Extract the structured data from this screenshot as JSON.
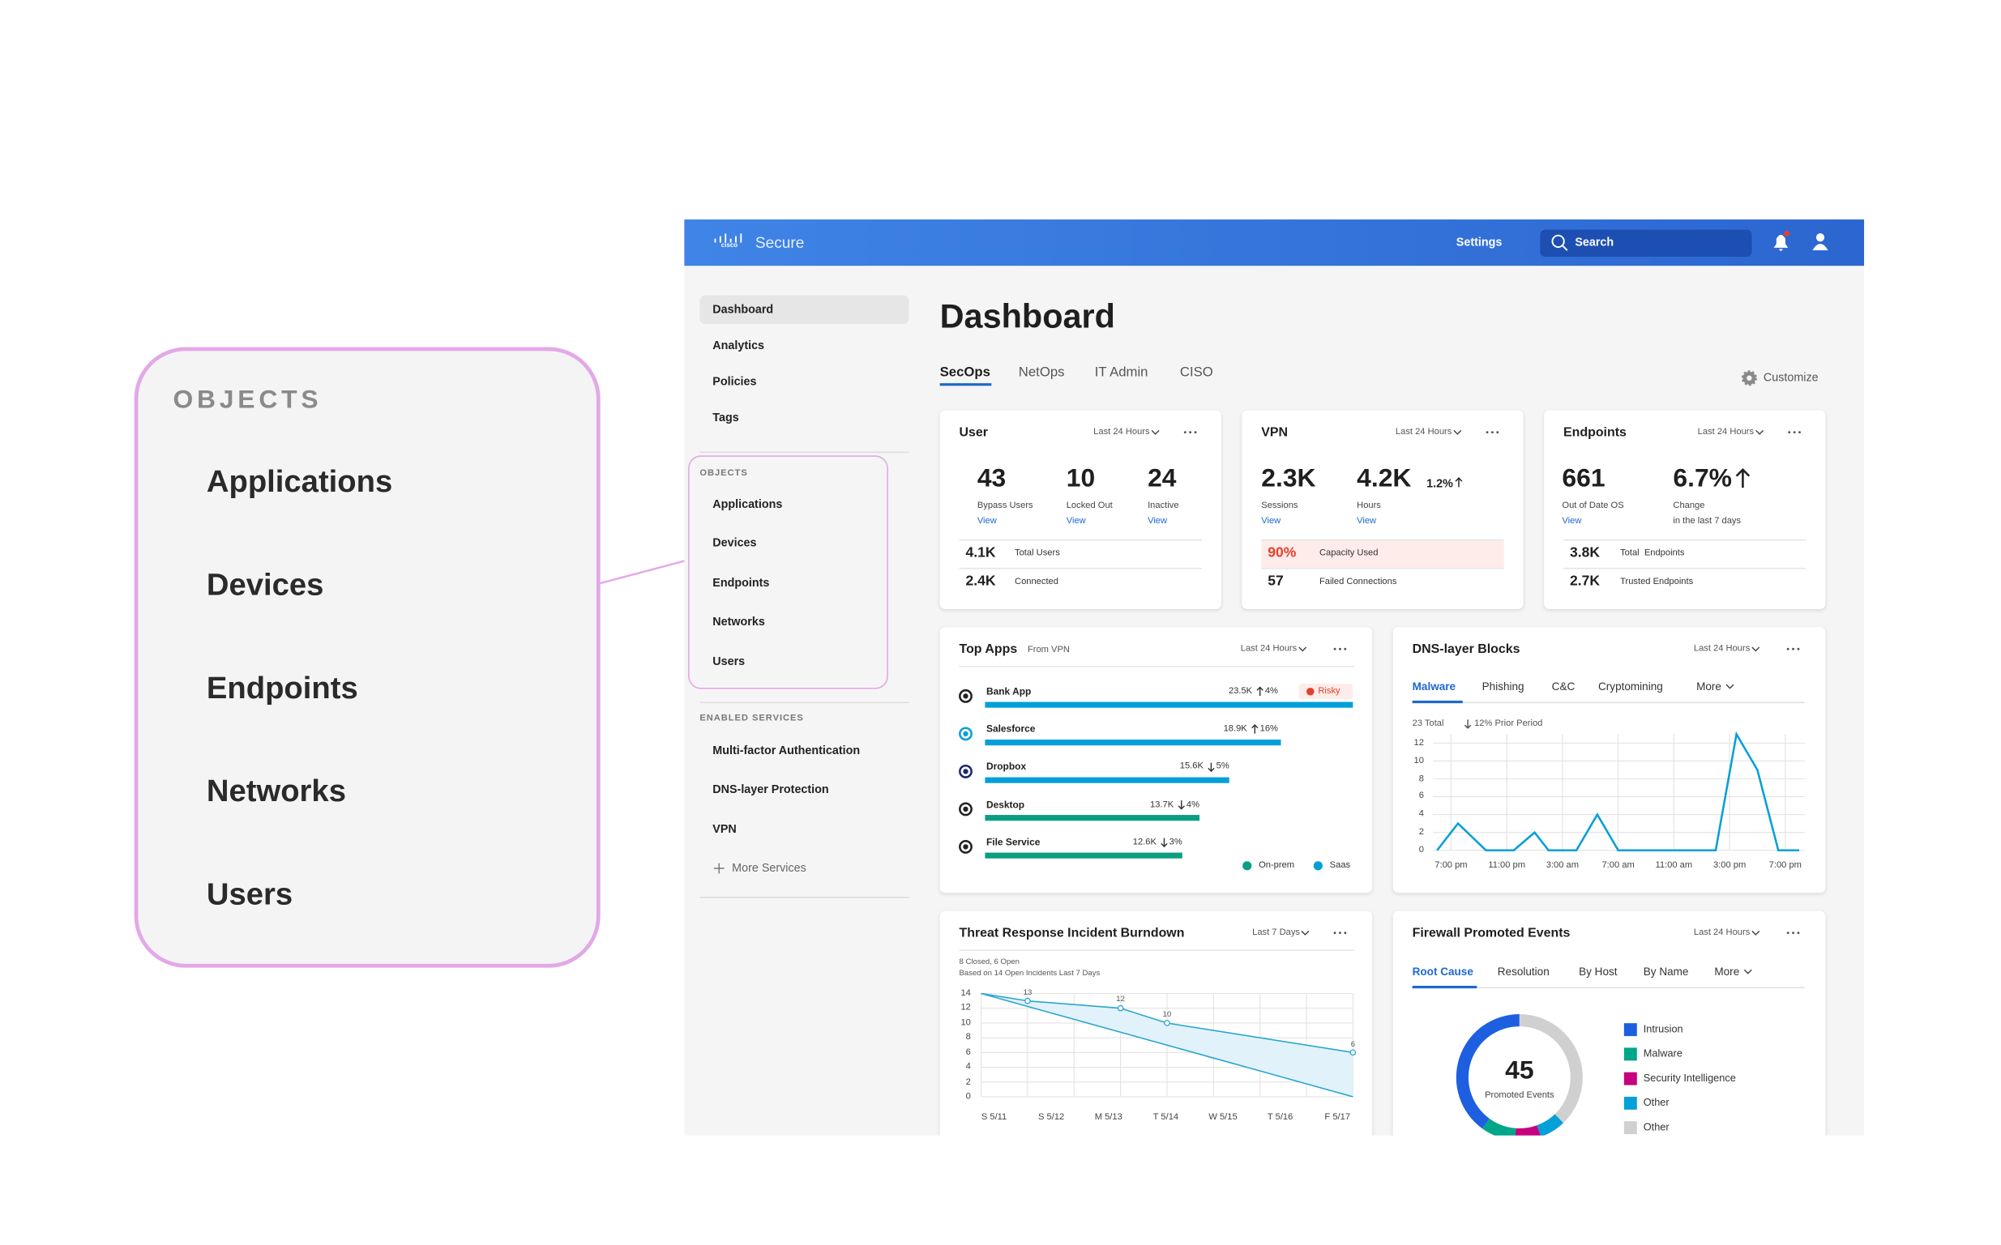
{
  "callout": {
    "title": "OBJECTS",
    "items": [
      "Applications",
      "Devices",
      "Endpoints",
      "Networks",
      "Users"
    ]
  },
  "header": {
    "logo": "cisco",
    "brand": "Secure",
    "settings": "Settings",
    "search": "Search"
  },
  "sidebar": {
    "nav": [
      "Dashboard",
      "Analytics",
      "Policies",
      "Tags"
    ],
    "objects_title": "OBJECTS",
    "objects": [
      "Applications",
      "Devices",
      "Endpoints",
      "Networks",
      "Users"
    ],
    "services_title": "ENABLED SERVICES",
    "services": [
      "Multi-factor Authentication",
      "DNS-layer Protection",
      "VPN"
    ],
    "more_services": "More Services"
  },
  "dashboard": {
    "title": "Dashboard",
    "tabs": [
      "SecOps",
      "NetOps",
      "IT Admin",
      "CISO"
    ],
    "customize": "Customize"
  },
  "user_card": {
    "title": "User",
    "range": "Last 24 Hours",
    "stats": [
      {
        "value": "43",
        "label": "Bypass Users",
        "link": "View"
      },
      {
        "value": "10",
        "label": "Locked Out",
        "link": "View"
      },
      {
        "value": "24",
        "label": "Inactive",
        "link": "View"
      }
    ],
    "rows": [
      {
        "value": "4.1K",
        "label": "Total Users"
      },
      {
        "value": "2.4K",
        "label": "Connected"
      }
    ]
  },
  "vpn_card": {
    "title": "VPN",
    "range": "Last 24 Hours",
    "stats": [
      {
        "value": "2.3K",
        "label": "Sessions",
        "link": "View"
      },
      {
        "value": "4.2K",
        "label": "Hours",
        "link": "View",
        "change": "1.2%"
      }
    ],
    "rows": [
      {
        "value": "90%",
        "label": "Capacity Used"
      },
      {
        "value": "57",
        "label": "Failed Connections"
      }
    ]
  },
  "endpoints_card": {
    "title": "Endpoints",
    "range": "Last 24 Hours",
    "stats": [
      {
        "value": "661",
        "label": "Out of Date OS",
        "link": "View"
      },
      {
        "value": "6.7%",
        "label": "Change",
        "note": "in the last 7 days"
      }
    ],
    "rows": [
      {
        "value": "3.8K",
        "label": "Total  Endpoints"
      },
      {
        "value": "2.7K",
        "label": "Trusted Endpoints"
      }
    ]
  },
  "top_apps": {
    "title": "Top Apps",
    "subtitle": "From VPN",
    "range": "Last 24 Hours",
    "chart": {
      "type": "bar",
      "categories": [
        "Bank App",
        "Salesforce",
        "Dropbox",
        "Desktop",
        "File Service"
      ],
      "values": [
        23500,
        18900,
        15600,
        13700,
        12600
      ],
      "value_labels": [
        "23.5K",
        "18.9K",
        "15.6K",
        "13.7K",
        "12.6K"
      ],
      "changes": [
        "4%",
        "16%",
        "5%",
        "4%",
        "3%"
      ],
      "change_directions": [
        "up",
        "up",
        "down",
        "down",
        "down"
      ],
      "badges": [
        "Risky",
        null,
        null,
        null,
        null
      ],
      "colors": [
        "#049fd9",
        "#049fd9",
        "#049fd9",
        "#0a9e83",
        "#0a9e83"
      ],
      "legend": [
        {
          "name": "On-prem",
          "color": "#0a9e83"
        },
        {
          "name": "Saas",
          "color": "#049fd9"
        }
      ]
    }
  },
  "dns": {
    "title": "DNS-layer Blocks",
    "range": "Last 24 Hours",
    "tabs": [
      "Malware",
      "Phishing",
      "C&C",
      "Cryptomining",
      "More"
    ],
    "total": "23 Total",
    "prior": "12% Prior Period",
    "chart": {
      "type": "line",
      "x": [
        -1,
        0.5,
        2.5,
        4.5,
        6,
        7,
        9,
        10.5,
        12,
        14,
        19,
        20.5,
        22,
        23.5,
        25
      ],
      "values": [
        0,
        3,
        0,
        0,
        2,
        0,
        0,
        4,
        0,
        0,
        0,
        13,
        9,
        0,
        0
      ],
      "color": "#049fd9",
      "xlim": [
        -1.3,
        25.4
      ],
      "ylim": [
        0,
        13
      ],
      "xticks": [
        {
          "value": 0,
          "label": "7:00 pm"
        },
        {
          "value": 4,
          "label": "11:00 pm"
        },
        {
          "value": 8,
          "label": "3:00 am"
        },
        {
          "value": 12,
          "label": "7:00 am"
        },
        {
          "value": 16,
          "label": "11:00 am"
        },
        {
          "value": 20,
          "label": "3:00 pm"
        },
        {
          "value": 24,
          "label": "7:00 pm"
        }
      ],
      "yticks": [
        0,
        2,
        4,
        6,
        8,
        10,
        12
      ],
      "grid": true
    }
  },
  "burndown": {
    "title": "Threat Response Incident Burndown",
    "range": "Last 7 Days",
    "summary": "8 Closed, 6 Open",
    "note": "Based on 14 Open Incidents Last 7 Days",
    "chart": {
      "type": "line",
      "categories": [
        "S 5/11",
        "S 5/12",
        "M 5/13",
        "T 5/14",
        "W 5/15",
        "T 5/16",
        "F 5/17"
      ],
      "series": [
        {
          "x": [
            0,
            1,
            3,
            4,
            8
          ],
          "values": [
            14,
            13,
            12,
            10,
            6
          ],
          "value_labels": [
            null,
            "13",
            "12",
            "10",
            "6"
          ],
          "color": "#2aa6cf"
        },
        {
          "x": [
            0,
            8
          ],
          "values": [
            14,
            0
          ],
          "color": "#2aa6cf"
        }
      ],
      "fill": "#e2f2fa",
      "xlim": [
        0,
        8
      ],
      "ylim": [
        0,
        14
      ],
      "yticks": [
        0,
        2,
        4,
        6,
        8,
        10,
        12,
        14
      ],
      "grid": true
    }
  },
  "firewall": {
    "title": "Firewall Promoted Events",
    "range": "Last 24 Hours",
    "tabs": [
      "Root Cause",
      "Resolution",
      "By Host",
      "By Name",
      "More"
    ],
    "chart": {
      "type": "donut",
      "total": 45,
      "center_label": "Promoted Events",
      "categories": [
        "Intrusion",
        "Malware",
        "Security Intelligence",
        "Other",
        "Other"
      ],
      "values": [
        18,
        4,
        3,
        3,
        17
      ],
      "colors": [
        "#1d5fe0",
        "#00a68a",
        "#c6007e",
        "#06a0d8",
        "#d0d0d0"
      ]
    }
  }
}
